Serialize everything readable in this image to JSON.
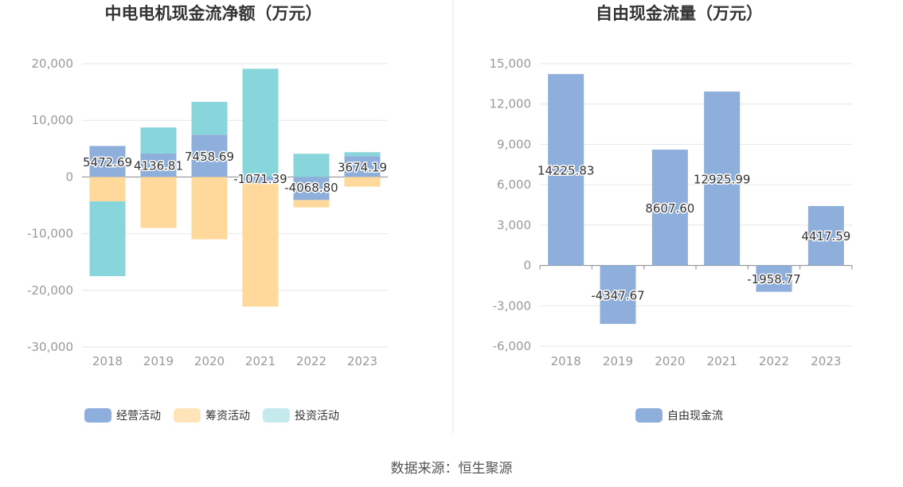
{
  "chart_data": [
    {
      "type": "bar",
      "stacked": true,
      "title": "中电电机现金流净额（万元）",
      "categories": [
        "2018",
        "2019",
        "2020",
        "2021",
        "2022",
        "2023"
      ],
      "y_ticks": [
        "20,000",
        "10,000",
        "0",
        "-10,000",
        "-20,000",
        "-30,000"
      ],
      "ylim": [
        -30000,
        20000
      ],
      "series": [
        {
          "name": "经营活动",
          "color": "#8eaedb",
          "values": [
            5472.69,
            4136.81,
            7458.69,
            -1071.39,
            -4068.8,
            3674.19
          ]
        },
        {
          "name": "筹资活动",
          "color": "#ffd99b",
          "values": [
            -4300,
            -9000,
            -11000,
            -21800,
            -1300,
            -1700
          ]
        },
        {
          "name": "投资活动",
          "color": "#88d6db",
          "values": [
            -13200,
            4600,
            5800,
            19100,
            4100,
            700
          ]
        }
      ],
      "labels": [
        "5472.69",
        "4136.81",
        "7458.69",
        "-1071.39",
        "-4068.80",
        "3674.19"
      ],
      "legend_colors": [
        "#8eaedb",
        "#fee4b8",
        "#c4eaed"
      ]
    },
    {
      "type": "bar",
      "title": "自由现金流量（万元）",
      "categories": [
        "2018",
        "2019",
        "2020",
        "2021",
        "2022",
        "2023"
      ],
      "y_ticks": [
        "15,000",
        "12,000",
        "9,000",
        "6,000",
        "3,000",
        "0",
        "-3,000",
        "-6,000"
      ],
      "ylim": [
        -6000,
        15000
      ],
      "series": [
        {
          "name": "自由现金流",
          "color": "#8eaedb",
          "values": [
            14225.83,
            -4347.67,
            8607.6,
            12925.99,
            -1958.77,
            4417.59
          ]
        }
      ],
      "labels": [
        "14225.83",
        "-4347.67",
        "8607.60",
        "12925.99",
        "-1958.77",
        "4417.59"
      ]
    }
  ],
  "source": "数据来源：恒生聚源"
}
